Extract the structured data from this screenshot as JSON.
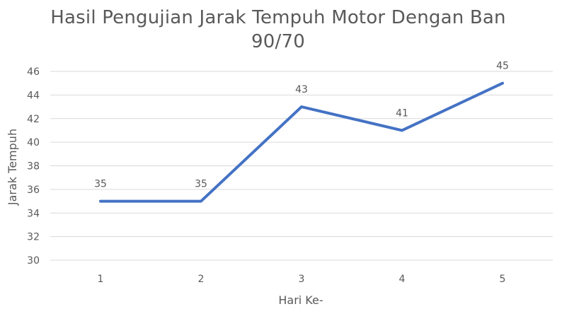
{
  "chart_data": {
    "type": "line",
    "title_line1": "Hasil Pengujian Jarak Tempuh Motor Dengan Ban",
    "title_line2": "90/70",
    "xlabel": "Hari Ke-",
    "ylabel": "Jarak Tempuh",
    "categories": [
      "1",
      "2",
      "3",
      "4",
      "5"
    ],
    "series": [
      {
        "values": [
          35,
          35,
          43,
          41,
          45
        ],
        "color": "#4472c4"
      }
    ],
    "data_labels": [
      "35",
      "35",
      "43",
      "41",
      "45"
    ],
    "ylim": [
      30,
      46
    ],
    "yticks": [
      30,
      32,
      34,
      36,
      38,
      40,
      42,
      44,
      46
    ],
    "ytick_labels": [
      "30",
      "32",
      "34",
      "36",
      "38",
      "40",
      "42",
      "44",
      "46"
    ],
    "grid": true,
    "legend": "none",
    "colors": {
      "line": "#4472c4",
      "grid": "#d9d9d9",
      "text": "#595959"
    }
  }
}
